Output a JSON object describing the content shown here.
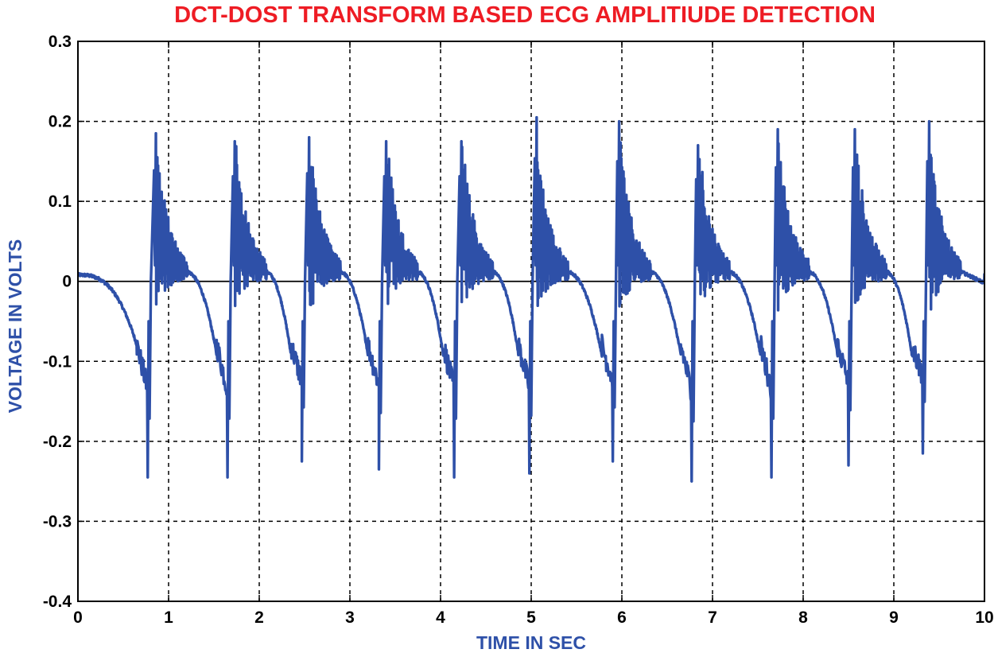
{
  "chart_data": {
    "type": "line",
    "title": "DCT-DOST TRANSFORM BASED ECG AMPLITIUDE DETECTION",
    "xlabel": "TIME IN SEC",
    "ylabel": "VOLTAGE IN VOLTS",
    "xlim": [
      0,
      10
    ],
    "ylim": [
      -0.4,
      0.3
    ],
    "x_ticks": [
      0,
      1,
      2,
      3,
      4,
      5,
      6,
      7,
      8,
      9,
      10
    ],
    "y_ticks": [
      -0.4,
      -0.3,
      -0.2,
      -0.1,
      0,
      0.1,
      0.2,
      0.3
    ],
    "x_tick_labels": [
      "0",
      "1",
      "2",
      "3",
      "4",
      "5",
      "6",
      "7",
      "8",
      "9",
      "10"
    ],
    "y_tick_labels": [
      "-0.4",
      "-0.3",
      "-0.2",
      "-0.1",
      "0",
      "0.1",
      "0.2",
      "0.3"
    ],
    "grid": true,
    "zero_line": true,
    "line_color": "#2e50a8",
    "title_color": "#ee1c24",
    "label_color": "#2e50a8",
    "beats": [
      {
        "x_min": 0.77,
        "y_min": -0.245,
        "x_max": 0.86,
        "y_max": 0.185
      },
      {
        "x_min": 1.65,
        "y_min": -0.245,
        "x_max": 1.73,
        "y_max": 0.175
      },
      {
        "x_min": 2.47,
        "y_min": -0.225,
        "x_max": 2.55,
        "y_max": 0.18
      },
      {
        "x_min": 3.32,
        "y_min": -0.235,
        "x_max": 3.4,
        "y_max": 0.175
      },
      {
        "x_min": 4.15,
        "y_min": -0.245,
        "x_max": 4.23,
        "y_max": 0.175
      },
      {
        "x_min": 4.98,
        "y_min": -0.24,
        "x_max": 5.06,
        "y_max": 0.205
      },
      {
        "x_min": 5.9,
        "y_min": -0.225,
        "x_max": 5.97,
        "y_max": 0.2
      },
      {
        "x_min": 6.77,
        "y_min": -0.25,
        "x_max": 6.84,
        "y_max": 0.17
      },
      {
        "x_min": 7.65,
        "y_min": -0.245,
        "x_max": 7.72,
        "y_max": 0.19
      },
      {
        "x_min": 8.5,
        "y_min": -0.23,
        "x_max": 8.57,
        "y_max": 0.19
      },
      {
        "x_min": 9.32,
        "y_min": -0.215,
        "x_max": 9.39,
        "y_max": 0.2
      }
    ],
    "start_point": {
      "x": 0,
      "y": 0.008
    },
    "end_point": {
      "x": 10,
      "y": 0.01
    }
  }
}
